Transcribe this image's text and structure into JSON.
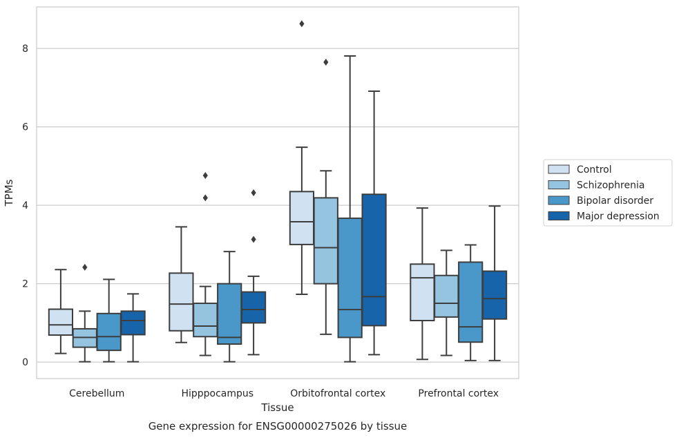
{
  "chart_data": {
    "type": "box",
    "title": "",
    "caption": "Gene expression for ENSG00000275026 by tissue",
    "xlabel": "Tissue",
    "ylabel": "TPMs",
    "ylim": [
      -0.42,
      9.06
    ],
    "yticks": [
      "0",
      "2",
      "4",
      "6",
      "8"
    ],
    "grid": "horizontal",
    "legend_position": "right",
    "categories": [
      "Cerebellum",
      "Hipppocampus",
      "Orbitofrontal cortex",
      "Prefrontal cortex"
    ],
    "series": [
      {
        "name": "Control",
        "color": "#d0e1f2",
        "boxes": [
          {
            "whislo": 0.22,
            "q1": 0.69,
            "med": 0.95,
            "q3": 1.35,
            "whishi": 2.36,
            "fliers": []
          },
          {
            "whislo": 0.5,
            "q1": 0.8,
            "med": 1.48,
            "q3": 2.27,
            "whishi": 3.45,
            "fliers": []
          },
          {
            "whislo": 1.73,
            "q1": 3.0,
            "med": 3.58,
            "q3": 4.35,
            "whishi": 5.48,
            "fliers": [
              8.63
            ]
          },
          {
            "whislo": 0.07,
            "q1": 1.06,
            "med": 2.15,
            "q3": 2.5,
            "whishi": 3.93,
            "fliers": []
          }
        ]
      },
      {
        "name": "Schizophrenia",
        "color": "#94c4df",
        "boxes": [
          {
            "whislo": 0.01,
            "q1": 0.38,
            "med": 0.63,
            "q3": 0.85,
            "whishi": 1.3,
            "fliers": [
              2.42
            ]
          },
          {
            "whislo": 0.17,
            "q1": 0.65,
            "med": 0.92,
            "q3": 1.5,
            "whishi": 1.93,
            "fliers": [
              4.19,
              4.76
            ]
          },
          {
            "whislo": 0.71,
            "q1": 2.0,
            "med": 2.92,
            "q3": 4.19,
            "whishi": 4.88,
            "fliers": [
              7.65
            ]
          },
          {
            "whislo": 0.17,
            "q1": 1.15,
            "med": 1.5,
            "q3": 2.21,
            "whishi": 2.85,
            "fliers": []
          }
        ]
      },
      {
        "name": "Bipolar disorder",
        "color": "#4a98c9",
        "boxes": [
          {
            "whislo": 0.01,
            "q1": 0.3,
            "med": 0.65,
            "q3": 1.24,
            "whishi": 2.11,
            "fliers": []
          },
          {
            "whislo": 0.01,
            "q1": 0.46,
            "med": 0.63,
            "q3": 2.0,
            "whishi": 2.82,
            "fliers": []
          },
          {
            "whislo": 0.01,
            "q1": 0.63,
            "med": 1.34,
            "q3": 3.67,
            "whishi": 7.81,
            "fliers": []
          },
          {
            "whislo": 0.04,
            "q1": 0.51,
            "med": 0.9,
            "q3": 2.55,
            "whishi": 2.99,
            "fliers": []
          }
        ]
      },
      {
        "name": "Major depression",
        "color": "#1764ab",
        "boxes": [
          {
            "whislo": 0.01,
            "q1": 0.7,
            "med": 1.06,
            "q3": 1.3,
            "whishi": 1.74,
            "fliers": []
          },
          {
            "whislo": 0.19,
            "q1": 1.0,
            "med": 1.34,
            "q3": 1.79,
            "whishi": 2.19,
            "fliers": [
              3.13,
              4.32
            ]
          },
          {
            "whislo": 0.19,
            "q1": 0.93,
            "med": 1.67,
            "q3": 4.28,
            "whishi": 6.91,
            "fliers": []
          },
          {
            "whislo": 0.04,
            "q1": 1.1,
            "med": 1.62,
            "q3": 2.32,
            "whishi": 3.98,
            "fliers": []
          }
        ]
      }
    ]
  }
}
